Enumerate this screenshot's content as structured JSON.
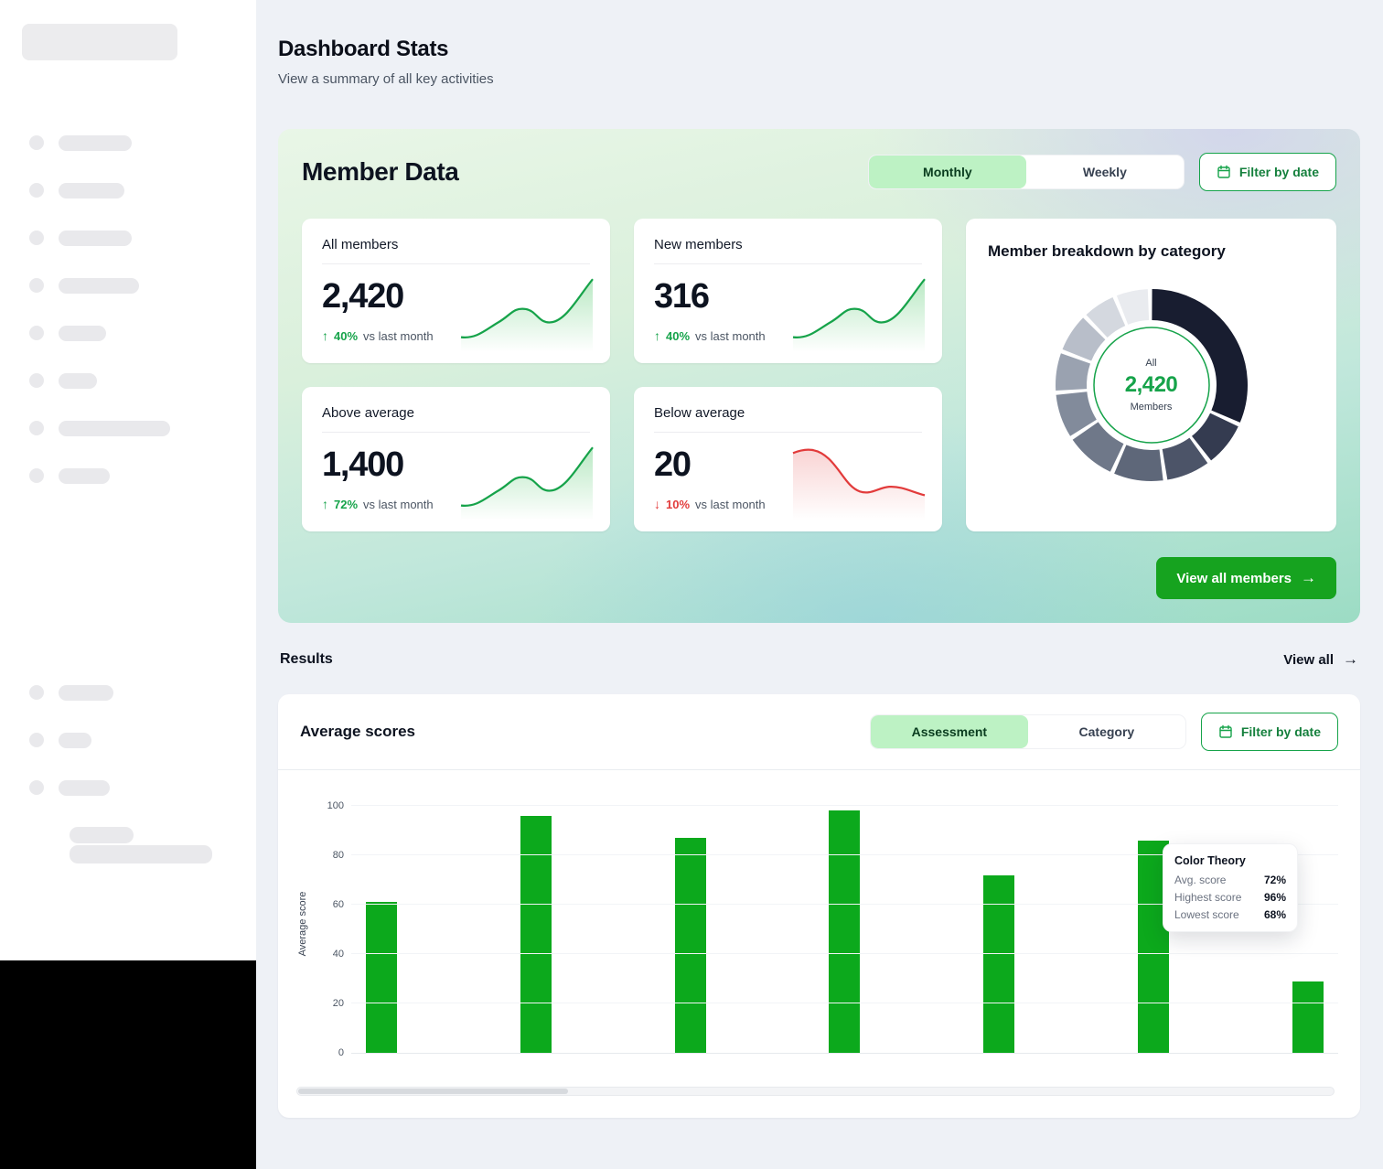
{
  "page": {
    "title": "Dashboard Stats",
    "subtitle": "View a summary of all key activities"
  },
  "member_data": {
    "title": "Member Data",
    "tabs": [
      {
        "label": "Monthly",
        "active": true
      },
      {
        "label": "Weekly",
        "active": false
      }
    ],
    "filter_button": "Filter by date",
    "stats": [
      {
        "label": "All members",
        "value": "2,420",
        "change": "40%",
        "direction": "up",
        "caption": "vs last month",
        "trend": "up"
      },
      {
        "label": "New members",
        "value": "316",
        "change": "40%",
        "direction": "up",
        "caption": "vs last month",
        "trend": "up"
      },
      {
        "label": "Above average",
        "value": "1,400",
        "change": "72%",
        "direction": "up",
        "caption": "vs last month",
        "trend": "up"
      },
      {
        "label": "Below average",
        "value": "20",
        "change": "10%",
        "direction": "down",
        "caption": "vs last month",
        "trend": "down"
      }
    ],
    "breakdown": {
      "title": "Member breakdown by category",
      "center_label_top": "All",
      "center_value": "2,420",
      "center_label_bottom": "Members",
      "segments": [
        {
          "value": 32,
          "color": "#181D30"
        },
        {
          "value": 8,
          "color": "#343B50"
        },
        {
          "value": 8,
          "color": "#4C5468"
        },
        {
          "value": 9,
          "color": "#5E6779"
        },
        {
          "value": 9,
          "color": "#6F7889"
        },
        {
          "value": 8,
          "color": "#828B9B"
        },
        {
          "value": 7,
          "color": "#9AA2B0"
        },
        {
          "value": 7,
          "color": "#B8BEC9"
        },
        {
          "value": 6,
          "color": "#D4D8DF"
        },
        {
          "value": 6,
          "color": "#E9EBEF"
        }
      ]
    },
    "view_all_button": "View all members"
  },
  "results": {
    "title": "Results",
    "view_all_label": "View all"
  },
  "average_scores": {
    "title": "Average scores",
    "tabs": [
      {
        "label": "Assessment",
        "active": true
      },
      {
        "label": "Category",
        "active": false
      }
    ],
    "filter_button": "Filter by date",
    "tooltip": {
      "title": "Color Theory",
      "rows": [
        {
          "label": "Avg. score",
          "value": "72%"
        },
        {
          "label": "Highest score",
          "value": "96%"
        },
        {
          "label": "Lowest score",
          "value": "68%"
        }
      ]
    }
  },
  "chart_data": {
    "type": "bar",
    "title": "Average scores",
    "ylabel": "Average score",
    "xlabel": "",
    "ylim": [
      0,
      100
    ],
    "yticks": [
      0,
      20,
      40,
      60,
      80,
      100
    ],
    "values": [
      61,
      96,
      87,
      98,
      72,
      86,
      29
    ],
    "bar_color": "#0CA91C",
    "grid": "faint-horizontal",
    "legend": "none"
  },
  "colors": {
    "accent_green": "#16A34A",
    "bar_green": "#0CA91C",
    "button_green": "#16A31F",
    "negative_red": "#E23B3B",
    "tab_active_bg": "#BDF2C4",
    "page_background": "#EEF1F6",
    "sidebar_block": "#000000"
  }
}
